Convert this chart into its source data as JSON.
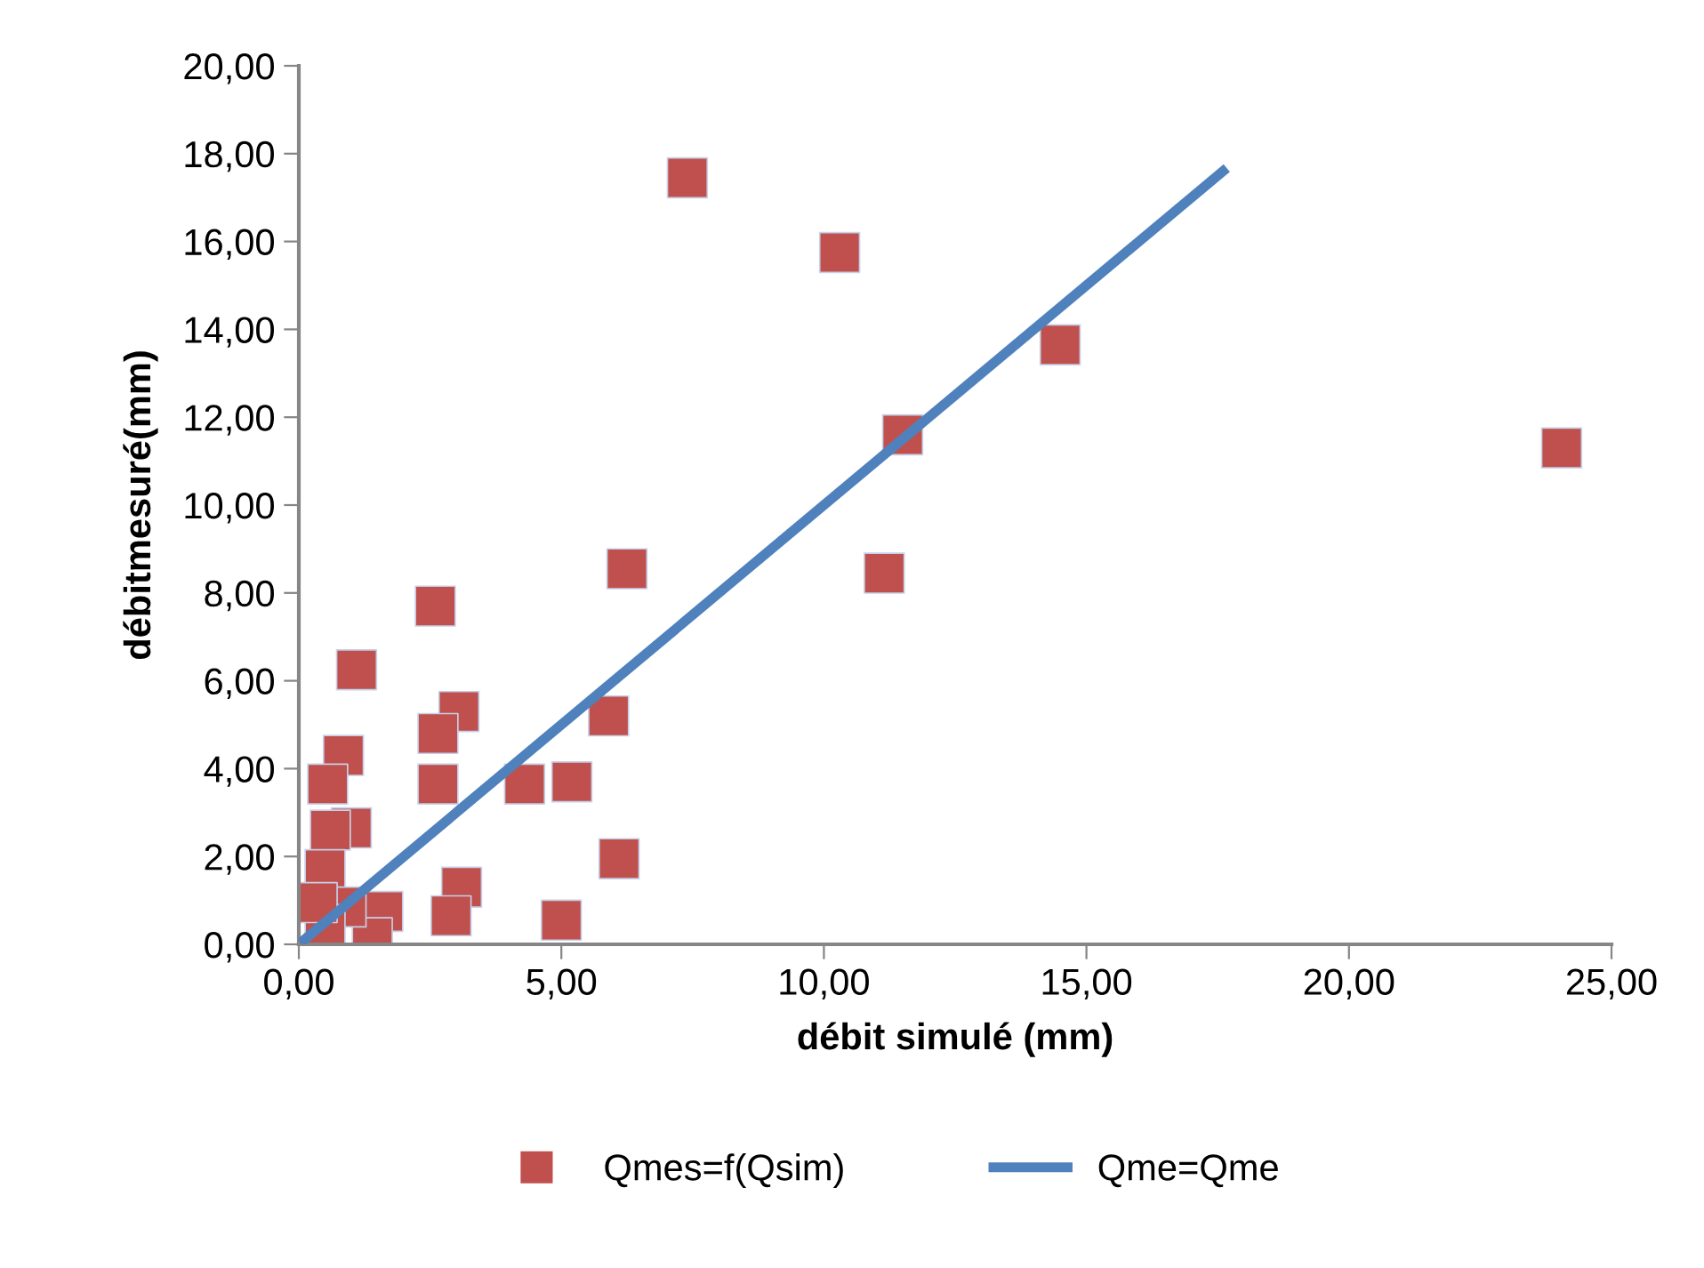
{
  "chart_data": {
    "type": "scatter",
    "xlabel": "débit simulé (mm)",
    "ylabel": "débitmesuré(mm)",
    "xlim": [
      0,
      25
    ],
    "ylim": [
      0,
      20
    ],
    "xticks": [
      {
        "value": 0,
        "label": "0,00"
      },
      {
        "value": 5,
        "label": "5,00"
      },
      {
        "value": 10,
        "label": "10,00"
      },
      {
        "value": 15,
        "label": "15,00"
      },
      {
        "value": 20,
        "label": "20,00"
      },
      {
        "value": 25,
        "label": "25,00"
      }
    ],
    "yticks": [
      {
        "value": 0,
        "label": "0,00"
      },
      {
        "value": 2,
        "label": "2,00"
      },
      {
        "value": 4,
        "label": "4,00"
      },
      {
        "value": 6,
        "label": "6,00"
      },
      {
        "value": 8,
        "label": "8,00"
      },
      {
        "value": 10,
        "label": "10,00"
      },
      {
        "value": 12,
        "label": "12,00"
      },
      {
        "value": 14,
        "label": "14,00"
      },
      {
        "value": 16,
        "label": "16,00"
      },
      {
        "value": 18,
        "label": "18,00"
      },
      {
        "value": 20,
        "label": "20,00"
      }
    ],
    "grid": false,
    "legend": "bottom",
    "series": [
      {
        "name": "Qmes=f(Qsim)",
        "marker": "square",
        "color": "#c0504d",
        "x": [
          7.4,
          10.3,
          14.5,
          11.5,
          24.05,
          11.15,
          6.25,
          2.6,
          1.1,
          3.05,
          2.65,
          5.9,
          2.65,
          4.3,
          5.2,
          6.1,
          0.85,
          0.55,
          1.0,
          0.6,
          0.5,
          3.1,
          2.9,
          5.0,
          1.6,
          1.4,
          0.9,
          0.5,
          0.35
        ],
        "values": [
          17.45,
          15.75,
          13.65,
          11.6,
          11.3,
          8.45,
          8.55,
          7.7,
          6.25,
          5.3,
          4.8,
          5.2,
          3.65,
          3.65,
          3.7,
          1.95,
          4.3,
          3.65,
          2.65,
          2.6,
          1.7,
          1.3,
          0.65,
          0.55,
          0.75,
          0.15,
          0.85,
          0.45,
          0.95
        ]
      },
      {
        "name": "Qme=Qme",
        "type": "line",
        "marker": "none",
        "line_style": "solid",
        "color": "#4f81bd",
        "x": [
          0.1,
          17.6
        ],
        "values": [
          0.1,
          17.6
        ]
      }
    ]
  }
}
